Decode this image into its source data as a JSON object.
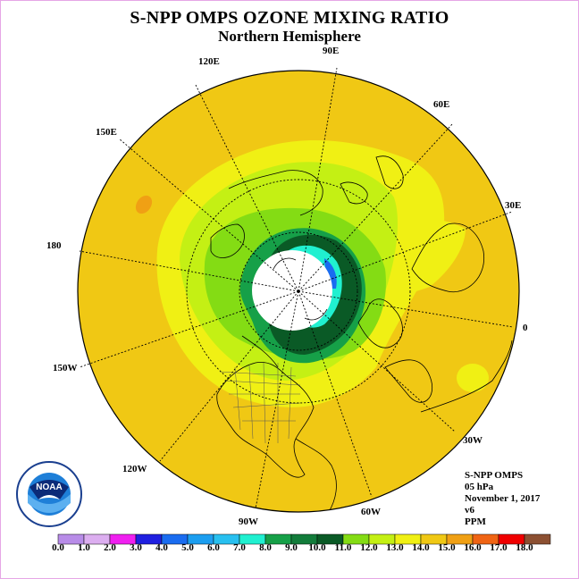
{
  "header": {
    "title": "S-NPP OMPS OZONE MIXING RATIO",
    "subtitle": "Northern Hemisphere"
  },
  "longitude_labels": [
    "120E",
    "90E",
    "60E",
    "150E",
    "30E",
    "180",
    "0",
    "150W",
    "30W",
    "120W",
    "60W",
    "90W"
  ],
  "info": {
    "instrument": "S-NPP OMPS",
    "pressure": "05 hPa",
    "date": "November 1, 2017",
    "version": "v6",
    "units": "PPM"
  },
  "logo": {
    "name": "noaa-logo",
    "text": "NOAA"
  },
  "legend": {
    "ticks": [
      "0.0",
      "1.0",
      "2.0",
      "3.0",
      "4.0",
      "5.0",
      "6.0",
      "7.0",
      "8.0",
      "9.0",
      "10.0",
      "11.0",
      "12.0",
      "13.0",
      "14.0",
      "15.0",
      "16.0",
      "17.0",
      "18.0"
    ],
    "colors": [
      "#b88ce8",
      "#dcaef0",
      "#f020f0",
      "#2020e0",
      "#1a6cf0",
      "#1c9ef0",
      "#28c0f0",
      "#20f0d0",
      "#16a048",
      "#127c3a",
      "#0a5a26",
      "#84dc14",
      "#c4f014",
      "#f0f014",
      "#f0c814",
      "#f0a014",
      "#f06414",
      "#f00000",
      "#8c5032"
    ]
  }
}
